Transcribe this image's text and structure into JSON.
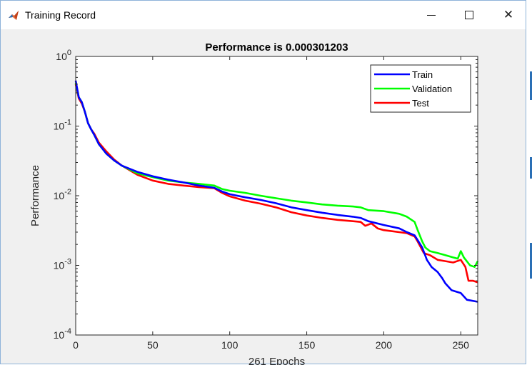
{
  "window": {
    "title": "Training Record",
    "icon": "matlab-icon",
    "controls": {
      "minimize": "minimize-icon",
      "maximize": "maximize-icon",
      "close": "close-icon"
    }
  },
  "colors": {
    "train": "#0000ff",
    "validation": "#00ff00",
    "test": "#ff0000",
    "figure_bg": "#f0f0f0",
    "axes_bg": "#ffffff"
  },
  "chart_data": {
    "type": "line",
    "title": "Performance is 0.000301203",
    "xlabel": "261 Epochs",
    "ylabel": "Performance",
    "xlim": [
      0,
      261
    ],
    "ylim": [
      0.0001,
      1
    ],
    "yscale": "log",
    "grid": false,
    "legend_position": "top-right",
    "x_ticks": [
      0,
      50,
      100,
      150,
      200,
      250
    ],
    "y_ticks": [
      {
        "value": 0.0001,
        "base": "10",
        "exp": "-4"
      },
      {
        "value": 0.001,
        "base": "10",
        "exp": "-3"
      },
      {
        "value": 0.01,
        "base": "10",
        "exp": "-2"
      },
      {
        "value": 0.1,
        "base": "10",
        "exp": "-1"
      },
      {
        "value": 1,
        "base": "10",
        "exp": "0"
      }
    ],
    "series": [
      {
        "name": "Train",
        "color": "#0000ff",
        "points": [
          [
            0,
            0.45
          ],
          [
            2,
            0.26
          ],
          [
            4,
            0.22
          ],
          [
            6,
            0.16
          ],
          [
            8,
            0.11
          ],
          [
            10,
            0.09
          ],
          [
            12,
            0.075
          ],
          [
            15,
            0.055
          ],
          [
            20,
            0.04
          ],
          [
            25,
            0.032
          ],
          [
            30,
            0.027
          ],
          [
            40,
            0.022
          ],
          [
            50,
            0.019
          ],
          [
            60,
            0.017
          ],
          [
            70,
            0.0155
          ],
          [
            80,
            0.014
          ],
          [
            90,
            0.013
          ],
          [
            95,
            0.0115
          ],
          [
            100,
            0.0105
          ],
          [
            110,
            0.0095
          ],
          [
            120,
            0.0087
          ],
          [
            130,
            0.0078
          ],
          [
            140,
            0.0068
          ],
          [
            150,
            0.0062
          ],
          [
            160,
            0.0057
          ],
          [
            170,
            0.0053
          ],
          [
            180,
            0.005
          ],
          [
            185,
            0.0048
          ],
          [
            190,
            0.0043
          ],
          [
            200,
            0.0038
          ],
          [
            210,
            0.0034
          ],
          [
            215,
            0.003
          ],
          [
            220,
            0.0027
          ],
          [
            222,
            0.0023
          ],
          [
            225,
            0.0018
          ],
          [
            228,
            0.0012
          ],
          [
            231,
            0.00095
          ],
          [
            235,
            0.0008
          ],
          [
            238,
            0.00065
          ],
          [
            240,
            0.00055
          ],
          [
            244,
            0.00044
          ],
          [
            250,
            0.0004
          ],
          [
            254,
            0.00032
          ],
          [
            261,
            0.0003
          ]
        ]
      },
      {
        "name": "Validation",
        "color": "#00ff00",
        "points": [
          [
            0,
            0.42
          ],
          [
            2,
            0.26
          ],
          [
            4,
            0.22
          ],
          [
            6,
            0.16
          ],
          [
            8,
            0.11
          ],
          [
            10,
            0.09
          ],
          [
            12,
            0.075
          ],
          [
            15,
            0.055
          ],
          [
            20,
            0.04
          ],
          [
            25,
            0.032
          ],
          [
            30,
            0.027
          ],
          [
            40,
            0.021
          ],
          [
            50,
            0.0185
          ],
          [
            60,
            0.0165
          ],
          [
            70,
            0.0155
          ],
          [
            80,
            0.0148
          ],
          [
            90,
            0.014
          ],
          [
            95,
            0.0125
          ],
          [
            100,
            0.0118
          ],
          [
            110,
            0.011
          ],
          [
            120,
            0.01
          ],
          [
            130,
            0.0092
          ],
          [
            140,
            0.0085
          ],
          [
            150,
            0.008
          ],
          [
            160,
            0.0075
          ],
          [
            170,
            0.0072
          ],
          [
            180,
            0.007
          ],
          [
            185,
            0.0068
          ],
          [
            190,
            0.0062
          ],
          [
            200,
            0.006
          ],
          [
            210,
            0.0055
          ],
          [
            215,
            0.005
          ],
          [
            220,
            0.0042
          ],
          [
            222,
            0.0032
          ],
          [
            225,
            0.0022
          ],
          [
            227,
            0.0018
          ],
          [
            230,
            0.0016
          ],
          [
            235,
            0.0015
          ],
          [
            240,
            0.0014
          ],
          [
            245,
            0.0013
          ],
          [
            248,
            0.00125
          ],
          [
            250,
            0.0016
          ],
          [
            252,
            0.0013
          ],
          [
            256,
            0.001
          ],
          [
            259,
            0.00095
          ],
          [
            261,
            0.00115
          ]
        ]
      },
      {
        "name": "Test",
        "color": "#ff0000",
        "points": [
          [
            0,
            0.4
          ],
          [
            2,
            0.25
          ],
          [
            4,
            0.21
          ],
          [
            6,
            0.16
          ],
          [
            8,
            0.11
          ],
          [
            10,
            0.09
          ],
          [
            12,
            0.078
          ],
          [
            15,
            0.058
          ],
          [
            20,
            0.043
          ],
          [
            25,
            0.033
          ],
          [
            30,
            0.027
          ],
          [
            40,
            0.02
          ],
          [
            50,
            0.0165
          ],
          [
            60,
            0.0148
          ],
          [
            70,
            0.014
          ],
          [
            80,
            0.0133
          ],
          [
            90,
            0.0128
          ],
          [
            95,
            0.011
          ],
          [
            100,
            0.0098
          ],
          [
            110,
            0.0085
          ],
          [
            120,
            0.0077
          ],
          [
            130,
            0.0068
          ],
          [
            140,
            0.0058
          ],
          [
            150,
            0.0052
          ],
          [
            160,
            0.0048
          ],
          [
            170,
            0.0045
          ],
          [
            180,
            0.0043
          ],
          [
            185,
            0.0042
          ],
          [
            188,
            0.0037
          ],
          [
            192,
            0.004
          ],
          [
            196,
            0.0034
          ],
          [
            200,
            0.0032
          ],
          [
            205,
            0.0031
          ],
          [
            210,
            0.003
          ],
          [
            215,
            0.0029
          ],
          [
            220,
            0.0026
          ],
          [
            222,
            0.0022
          ],
          [
            226,
            0.0015
          ],
          [
            230,
            0.0014
          ],
          [
            235,
            0.0012
          ],
          [
            240,
            0.00115
          ],
          [
            245,
            0.0011
          ],
          [
            250,
            0.0012
          ],
          [
            253,
            0.00095
          ],
          [
            255,
            0.0006
          ],
          [
            258,
            0.0006
          ],
          [
            261,
            0.00057
          ]
        ]
      }
    ]
  }
}
